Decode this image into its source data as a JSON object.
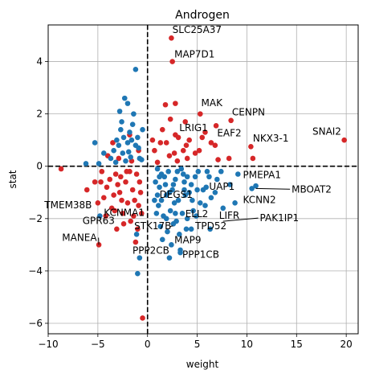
{
  "chart_data": {
    "type": "scatter",
    "title": "Androgen",
    "xlabel": "weight",
    "ylabel": "stat",
    "xlim": [
      -10,
      21.2
    ],
    "ylim": [
      -6.4,
      5.4
    ],
    "xticks": [
      -10,
      -5,
      0,
      5,
      10,
      15,
      20
    ],
    "yticks": [
      -6,
      -4,
      -2,
      0,
      2,
      4
    ],
    "xtick_labels": [
      "−10",
      "−5",
      "0",
      "5",
      "10",
      "15",
      "20"
    ],
    "ytick_labels": [
      "−6",
      "−4",
      "−2",
      "0",
      "2",
      "4"
    ],
    "grid": true,
    "reference_lines": {
      "x": 0,
      "y": 0,
      "style": "dashed"
    },
    "colors": {
      "red": "#d62728",
      "blue": "#1f77b4",
      "grid": "#b0b0b0"
    },
    "series": [
      {
        "color": "red",
        "points": [
          [
            2.4,
            4.9
          ],
          [
            2.5,
            4.0
          ],
          [
            5.3,
            2.0
          ],
          [
            8.4,
            1.75
          ],
          [
            6.9,
            1.55
          ],
          [
            5.8,
            1.3
          ],
          [
            3.1,
            1.1
          ],
          [
            3.8,
            1.7
          ],
          [
            2.8,
            1.2
          ],
          [
            10.4,
            0.75
          ],
          [
            10.6,
            0.3
          ],
          [
            19.8,
            1.0
          ],
          [
            -8.7,
            -0.1
          ],
          [
            -4.9,
            -3.0
          ],
          [
            -3.1,
            -2.4
          ],
          [
            1.8,
            2.35
          ],
          [
            2.8,
            2.4
          ],
          [
            6.4,
            0.9
          ],
          [
            4.8,
            0.5
          ],
          [
            7.1,
            0.25
          ],
          [
            5.2,
            0.6
          ],
          [
            3.9,
            0.8
          ],
          [
            2.2,
            0.4
          ],
          [
            1.3,
            0.9
          ],
          [
            1.0,
            0.15
          ],
          [
            3.0,
            0.2
          ],
          [
            4.2,
            1.0
          ],
          [
            1.5,
            1.4
          ],
          [
            0.7,
            0.6
          ],
          [
            2.3,
            1.8
          ],
          [
            5.5,
            1.1
          ],
          [
            4.0,
            0.3
          ],
          [
            6.8,
            0.8
          ],
          [
            3.6,
            0.6
          ],
          [
            1.9,
            0.9
          ],
          [
            0.5,
            1.0
          ],
          [
            2.7,
            0.5
          ],
          [
            8.2,
            0.3
          ],
          [
            -1.8,
            -0.2
          ],
          [
            -2.2,
            -0.6
          ],
          [
            -3.2,
            -0.3
          ],
          [
            -2.8,
            -1.0
          ],
          [
            -4.1,
            -0.8
          ],
          [
            -1.3,
            -1.3
          ],
          [
            -0.8,
            -0.6
          ],
          [
            -3.6,
            -1.6
          ],
          [
            -2.5,
            -1.8
          ],
          [
            -4.4,
            -1.2
          ],
          [
            -1.7,
            -2.1
          ],
          [
            -0.7,
            -1.0
          ],
          [
            -5.3,
            -0.6
          ],
          [
            -2.0,
            -1.4
          ],
          [
            -3.0,
            -0.7
          ],
          [
            -1.1,
            -0.3
          ],
          [
            -4.6,
            -0.2
          ],
          [
            -2.4,
            -2.2
          ],
          [
            -0.6,
            -1.8
          ],
          [
            -3.4,
            -1.1
          ],
          [
            -1.5,
            -0.9
          ],
          [
            -4.2,
            -1.9
          ],
          [
            -2.7,
            -0.4
          ],
          [
            -1.0,
            -2.4
          ],
          [
            -6.1,
            -0.9
          ],
          [
            -3.8,
            -0.5
          ],
          [
            -0.9,
            -1.5
          ],
          [
            -2.1,
            -0.2
          ],
          [
            -5.0,
            -1.4
          ],
          [
            -1.4,
            -1.9
          ],
          [
            -3.3,
            -1.7
          ],
          [
            -4.7,
            -0.6
          ],
          [
            -1.2,
            -2.9
          ],
          [
            -0.5,
            -5.8
          ],
          [
            -2.6,
            -1.3
          ],
          [
            -3.5,
            0.9
          ],
          [
            -1.8,
            1.2
          ],
          [
            -0.9,
            0.6
          ],
          [
            -2.9,
            0.3
          ],
          [
            -4.0,
            0.4
          ],
          [
            -1.6,
            0.2
          ]
        ]
      },
      {
        "color": "blue",
        "points": [
          [
            -1.2,
            3.7
          ],
          [
            -2.3,
            2.6
          ],
          [
            -2.0,
            2.4
          ],
          [
            -2.8,
            2.1
          ],
          [
            -1.5,
            1.6
          ],
          [
            -2.6,
            1.7
          ],
          [
            -1.8,
            1.3
          ],
          [
            -5.3,
            0.9
          ],
          [
            -6.2,
            0.1
          ],
          [
            -4.9,
            0.1
          ],
          [
            -3.1,
            1.0
          ],
          [
            -1.2,
            0.8
          ],
          [
            -2.5,
            0.5
          ],
          [
            -1.7,
            0.35
          ],
          [
            -2.2,
            0.2
          ],
          [
            -0.8,
            0.3
          ],
          [
            -3.4,
            0.6
          ],
          [
            -2.0,
            0.9
          ],
          [
            -1.0,
            1.1
          ],
          [
            -3.7,
            0.3
          ],
          [
            -2.7,
            1.4
          ],
          [
            -1.4,
            2.0
          ],
          [
            -2.9,
            0.8
          ],
          [
            -0.9,
            0.7
          ],
          [
            -1.9,
            0.55
          ],
          [
            -3.2,
            0.15
          ],
          [
            -0.6,
            0.25
          ],
          [
            -2.4,
            1.1
          ],
          [
            -1.6,
            1.0
          ],
          [
            -4.4,
            0.5
          ],
          [
            -0.5,
            1.4
          ],
          [
            -1.1,
            -2.6
          ],
          [
            -0.8,
            -3.5
          ],
          [
            -4.8,
            -1.9
          ],
          [
            -1.0,
            -4.1
          ],
          [
            1.0,
            -0.1
          ],
          [
            1.4,
            -0.3
          ],
          [
            2.1,
            -0.2
          ],
          [
            2.8,
            -0.5
          ],
          [
            3.4,
            -0.1
          ],
          [
            1.2,
            -0.8
          ],
          [
            1.9,
            -1.1
          ],
          [
            2.5,
            -0.9
          ],
          [
            3.1,
            -1.3
          ],
          [
            3.7,
            -0.6
          ],
          [
            4.2,
            -1.0
          ],
          [
            4.8,
            -0.4
          ],
          [
            5.3,
            -1.4
          ],
          [
            5.9,
            -0.8
          ],
          [
            6.4,
            -1.2
          ],
          [
            7.0,
            -0.5
          ],
          [
            7.6,
            -1.6
          ],
          [
            1.1,
            -1.5
          ],
          [
            1.6,
            -1.9
          ],
          [
            2.3,
            -1.7
          ],
          [
            2.9,
            -2.1
          ],
          [
            3.5,
            -1.8
          ],
          [
            4.0,
            -2.0
          ],
          [
            4.6,
            -1.7
          ],
          [
            1.3,
            -2.3
          ],
          [
            2.0,
            -2.5
          ],
          [
            2.6,
            -2.2
          ],
          [
            3.2,
            -2.6
          ],
          [
            3.9,
            -2.4
          ],
          [
            1.5,
            -2.8
          ],
          [
            2.4,
            -3.0
          ],
          [
            3.3,
            -3.3
          ],
          [
            2.2,
            -3.5
          ],
          [
            3.3,
            -3.2
          ],
          [
            4.4,
            -2.4
          ],
          [
            0.8,
            -0.6
          ],
          [
            1.7,
            -0.4
          ],
          [
            2.6,
            -0.7
          ],
          [
            3.6,
            -0.3
          ],
          [
            4.4,
            -0.7
          ],
          [
            5.1,
            -0.2
          ],
          [
            5.6,
            -0.9
          ],
          [
            6.2,
            -0.4
          ],
          [
            6.8,
            -1.0
          ],
          [
            7.4,
            -0.2
          ],
          [
            8.3,
            -0.7
          ],
          [
            9.1,
            -0.3
          ],
          [
            1.0,
            -1.1
          ],
          [
            1.8,
            -0.7
          ],
          [
            2.7,
            -1.4
          ],
          [
            3.8,
            -1.1
          ],
          [
            4.9,
            -1.9
          ],
          [
            5.8,
            -1.5
          ],
          [
            0.9,
            -1.8
          ],
          [
            1.4,
            -1.3
          ],
          [
            2.2,
            -1.0
          ],
          [
            3.0,
            -0.2
          ],
          [
            4.0,
            -0.4
          ],
          [
            5.0,
            -0.9
          ],
          [
            6.0,
            -0.2
          ],
          [
            10.9,
            -0.75
          ],
          [
            10.5,
            -0.85
          ],
          [
            6.3,
            -2.4
          ],
          [
            3.7,
            -0.9
          ],
          [
            1.2,
            -0.4
          ],
          [
            2.8,
            -1.8
          ],
          [
            4.5,
            -1.3
          ],
          [
            0.7,
            -1.3
          ],
          [
            1.9,
            -2.0
          ],
          [
            8.8,
            -1.4
          ]
        ]
      }
    ],
    "annotations": [
      {
        "label": "SLC25A37",
        "x": 2.4,
        "y": 4.9,
        "tx": 2.5,
        "ty": 5.1,
        "ha": "left",
        "arrow": false
      },
      {
        "label": "MAP7D1",
        "x": 2.5,
        "y": 4.0,
        "tx": 2.7,
        "ty": 4.15,
        "ha": "left",
        "arrow": false
      },
      {
        "label": "MAK",
        "x": 5.3,
        "y": 2.0,
        "tx": 5.4,
        "ty": 2.3,
        "ha": "left",
        "arrow": false
      },
      {
        "label": "CENPN",
        "x": 8.4,
        "y": 1.75,
        "tx": 8.5,
        "ty": 1.95,
        "ha": "left",
        "arrow": false
      },
      {
        "label": "LRIG1",
        "x": 3.1,
        "y": 1.1,
        "tx": 3.2,
        "ty": 1.35,
        "ha": "left",
        "arrow": false
      },
      {
        "label": "EAF2",
        "x": 6.9,
        "y": 1.55,
        "tx": 7.0,
        "ty": 1.15,
        "ha": "left",
        "arrow": false
      },
      {
        "label": "NKX3-1",
        "x": 10.4,
        "y": 0.75,
        "tx": 10.6,
        "ty": 0.95,
        "ha": "left",
        "arrow": false
      },
      {
        "label": "SNAI2",
        "x": 19.8,
        "y": 1.0,
        "tx": 19.5,
        "ty": 1.2,
        "ha": "right",
        "arrow": false
      },
      {
        "label": "PMEPA1",
        "x": 9.6,
        "y": -0.75,
        "tx": 9.6,
        "ty": -0.45,
        "ha": "left",
        "arrow": false
      },
      {
        "label": "MBOAT2",
        "x": 10.9,
        "y": -0.85,
        "tx": 14.5,
        "ty": -1.0,
        "ha": "left",
        "arrow": true
      },
      {
        "label": "UAP1",
        "x": 6.3,
        "y": -0.9,
        "tx": 6.2,
        "ty": -0.9,
        "ha": "left",
        "arrow": false
      },
      {
        "label": "DEGS1",
        "x": 3.7,
        "y": -0.9,
        "tx": 1.2,
        "ty": -1.2,
        "ha": "left",
        "arrow": false
      },
      {
        "label": "KCNN2",
        "x": 8.8,
        "y": -1.4,
        "tx": 9.6,
        "ty": -1.4,
        "ha": "left",
        "arrow": false
      },
      {
        "label": "TMEM38B",
        "x": -8.7,
        "y": -1.7,
        "tx": -5.6,
        "ty": -1.6,
        "ha": "right",
        "arrow": false
      },
      {
        "label": "KCNMA1",
        "x": -0.2,
        "y": -1.8,
        "tx": -0.3,
        "ty": -1.9,
        "ha": "right",
        "arrow": false
      },
      {
        "label": "ELL2",
        "x": 1.9,
        "y": -2.0,
        "tx": 3.8,
        "ty": -1.95,
        "ha": "left",
        "arrow": false
      },
      {
        "label": "LIFR",
        "x": 7.1,
        "y": -2.0,
        "tx": 7.2,
        "ty": -2.0,
        "ha": "left",
        "arrow": false
      },
      {
        "label": "PAK1IP1",
        "x": 7.6,
        "y": -2.1,
        "tx": 11.3,
        "ty": -2.1,
        "ha": "left",
        "arrow": true
      },
      {
        "label": "GPR63",
        "x": -3.1,
        "y": -2.4,
        "tx": -3.3,
        "ty": -2.2,
        "ha": "right",
        "arrow": false
      },
      {
        "label": "STK17B",
        "x": 2.2,
        "y": -2.3,
        "tx": 2.4,
        "ty": -2.4,
        "ha": "right",
        "arrow": true
      },
      {
        "label": "TPD52",
        "x": 4.6,
        "y": -2.4,
        "tx": 4.8,
        "ty": -2.4,
        "ha": "left",
        "arrow": false
      },
      {
        "label": "MANEA",
        "x": -4.9,
        "y": -3.0,
        "tx": -5.1,
        "ty": -2.85,
        "ha": "right",
        "arrow": true
      },
      {
        "label": "MAP9",
        "x": 2.4,
        "y": -3.0,
        "tx": 2.7,
        "ty": -2.95,
        "ha": "left",
        "arrow": false
      },
      {
        "label": "PPP2CB",
        "x": 2.2,
        "y": -3.2,
        "tx": 2.2,
        "ty": -3.35,
        "ha": "right",
        "arrow": false
      },
      {
        "label": "PPP1CB",
        "x": 3.3,
        "y": -3.2,
        "tx": 3.5,
        "ty": -3.5,
        "ha": "left",
        "arrow": false
      }
    ]
  }
}
